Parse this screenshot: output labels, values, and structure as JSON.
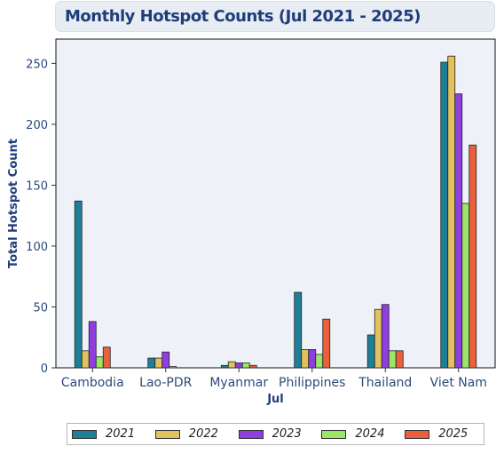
{
  "title": "Monthly Hotspot Counts (Jul 2021 - 2025)",
  "colors": {
    "title": "#1f3d7a",
    "axis_text": "#2b4a7a",
    "plot_bg": "#eef1f7"
  },
  "chart_data": {
    "type": "bar",
    "title": "Monthly Hotspot Counts (Jul 2021 - 2025)",
    "xlabel": "Jul",
    "ylabel": "Total Hotspot Count",
    "categories": [
      "Cambodia",
      "Lao-PDR",
      "Myanmar",
      "Philippines",
      "Thailand",
      "Viet Nam"
    ],
    "ylim": [
      0,
      270
    ],
    "yticks": [
      0,
      50,
      100,
      150,
      200,
      250
    ],
    "grid": false,
    "legend_position": "bottom",
    "series": [
      {
        "name": "2021",
        "color": "#1f7f98",
        "values": [
          137,
          8,
          2,
          62,
          27,
          251
        ]
      },
      {
        "name": "2022",
        "color": "#e2c160",
        "values": [
          14,
          8,
          5,
          15,
          48,
          256
        ]
      },
      {
        "name": "2023",
        "color": "#8f3fe0",
        "values": [
          38,
          13,
          4,
          15,
          52,
          225
        ]
      },
      {
        "name": "2024",
        "color": "#9ce66a",
        "values": [
          9,
          1,
          4,
          11,
          14,
          135
        ]
      },
      {
        "name": "2025",
        "color": "#e8603c",
        "values": [
          17,
          0,
          2,
          40,
          14,
          183
        ]
      }
    ]
  }
}
